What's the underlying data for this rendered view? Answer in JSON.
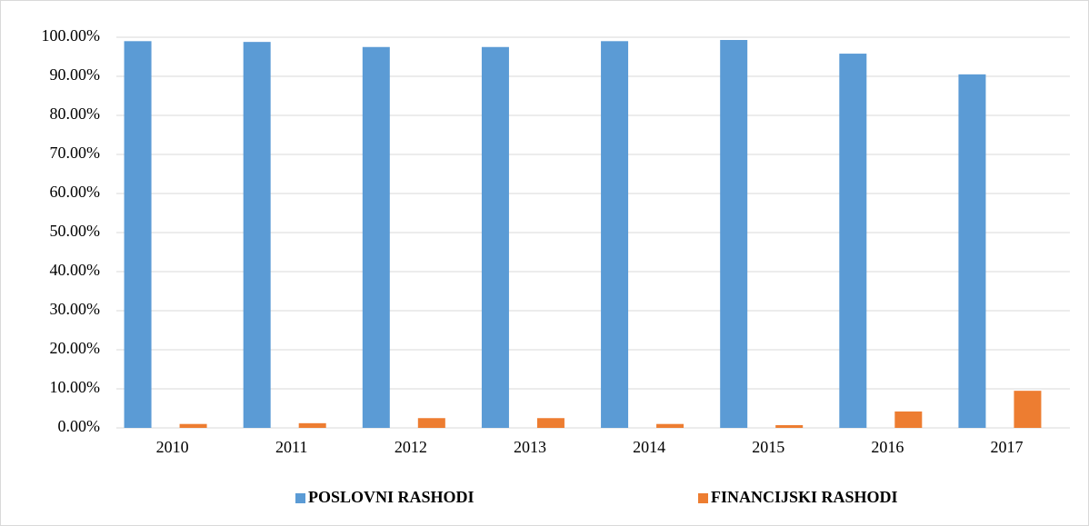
{
  "chart_data": {
    "type": "bar",
    "categories": [
      "2010",
      "2011",
      "2012",
      "2013",
      "2014",
      "2015",
      "2016",
      "2017"
    ],
    "series": [
      {
        "name": "POSLOVNI RASHODI",
        "color": "#5b9bd5",
        "values": [
          99.0,
          98.8,
          97.5,
          97.5,
          99.0,
          99.3,
          95.8,
          90.5
        ]
      },
      {
        "name": "FINANCIJSKI RASHODI",
        "color": "#ed7d31",
        "values": [
          1.0,
          1.2,
          2.5,
          2.5,
          1.0,
          0.7,
          4.2,
          9.5
        ]
      }
    ],
    "ylim": [
      0,
      100
    ],
    "yticks": [
      {
        "value": 0,
        "label": "0.00%"
      },
      {
        "value": 10,
        "label": "10.00%"
      },
      {
        "value": 20,
        "label": "20.00%"
      },
      {
        "value": 30,
        "label": "30.00%"
      },
      {
        "value": 40,
        "label": "40.00%"
      },
      {
        "value": 50,
        "label": "50.00%"
      },
      {
        "value": 60,
        "label": "60.00%"
      },
      {
        "value": 70,
        "label": "70.00%"
      },
      {
        "value": 80,
        "label": "80.00%"
      },
      {
        "value": 90,
        "label": "90.00%"
      },
      {
        "value": 100,
        "label": "100.00%"
      }
    ],
    "grid": true,
    "legend": "bottom"
  }
}
